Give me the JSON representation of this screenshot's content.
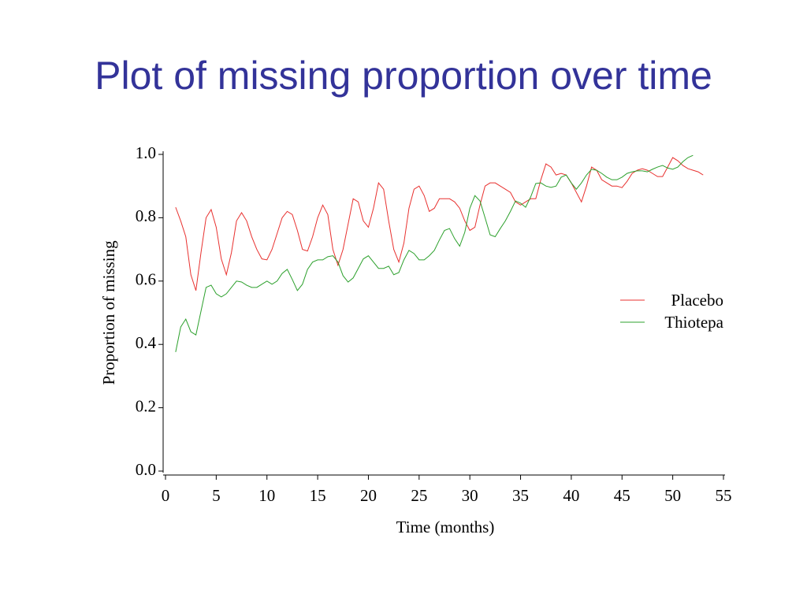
{
  "chart_data": {
    "type": "line",
    "title": "Plot of missing proportion over time",
    "xlabel": "Time (months)",
    "ylabel": "Proportion of missing",
    "legend": "right",
    "x": [
      1,
      1.5,
      2,
      2.5,
      3,
      3.5,
      4,
      4.5,
      5,
      5.5,
      6,
      6.5,
      7,
      7.5,
      8,
      8.5,
      9,
      9.5,
      10,
      10.5,
      11,
      11.5,
      12,
      12.5,
      13,
      13.5,
      14,
      14.5,
      15,
      15.5,
      16,
      16.5,
      17,
      17.5,
      18,
      18.5,
      19,
      19.5,
      20,
      20.5,
      21,
      21.5,
      22,
      22.5,
      23,
      23.5,
      24,
      24.5,
      25,
      25.5,
      26,
      26.5,
      27,
      27.5,
      28,
      28.5,
      29,
      29.5,
      30,
      30.5,
      31,
      31.5,
      32,
      32.5,
      33,
      33.5,
      34,
      34.5,
      35,
      35.5,
      36,
      36.5,
      37,
      37.5,
      38,
      38.5,
      39,
      39.5,
      40,
      40.5,
      41,
      41.5,
      42,
      42.5,
      43,
      43.5,
      44,
      44.5,
      45,
      45.5,
      46,
      46.5,
      47,
      47.5,
      48,
      48.5,
      49,
      49.5,
      50,
      50.5,
      51,
      51.5,
      52,
      52.5,
      53
    ],
    "series": [
      {
        "name": "Placebo",
        "color": "#e8312f",
        "values": [
          0.833,
          0.79,
          0.74,
          0.62,
          0.57,
          0.69,
          0.8,
          0.826,
          0.77,
          0.67,
          0.62,
          0.69,
          0.79,
          0.816,
          0.79,
          0.74,
          0.7,
          0.67,
          0.667,
          0.7,
          0.75,
          0.8,
          0.82,
          0.81,
          0.76,
          0.7,
          0.695,
          0.74,
          0.8,
          0.84,
          0.81,
          0.7,
          0.65,
          0.7,
          0.78,
          0.86,
          0.85,
          0.79,
          0.77,
          0.83,
          0.91,
          0.89,
          0.79,
          0.7,
          0.66,
          0.72,
          0.83,
          0.89,
          0.9,
          0.87,
          0.82,
          0.83,
          0.86,
          0.86,
          0.86,
          0.85,
          0.83,
          0.79,
          0.76,
          0.77,
          0.84,
          0.9,
          0.91,
          0.91,
          0.9,
          0.89,
          0.88,
          0.85,
          0.84,
          0.85,
          0.86,
          0.86,
          0.92,
          0.97,
          0.96,
          0.935,
          0.94,
          0.935,
          0.91,
          0.88,
          0.85,
          0.9,
          0.96,
          0.95,
          0.92,
          0.91,
          0.9,
          0.9,
          0.895,
          0.915,
          0.94,
          0.95,
          0.955,
          0.95,
          0.94,
          0.93,
          0.93,
          0.96,
          0.99,
          0.98,
          0.965,
          0.955,
          0.95,
          0.945,
          0.935
        ]
      },
      {
        "name": "Thiotepa",
        "color": "#2ca02c",
        "values": [
          0.376,
          0.455,
          0.48,
          0.44,
          0.43,
          0.505,
          0.58,
          0.587,
          0.56,
          0.55,
          0.56,
          0.58,
          0.6,
          0.597,
          0.587,
          0.58,
          0.58,
          0.59,
          0.6,
          0.59,
          0.6,
          0.624,
          0.637,
          0.605,
          0.57,
          0.59,
          0.637,
          0.66,
          0.667,
          0.667,
          0.677,
          0.68,
          0.66,
          0.617,
          0.597,
          0.61,
          0.64,
          0.67,
          0.68,
          0.66,
          0.64,
          0.64,
          0.647,
          0.62,
          0.627,
          0.667,
          0.697,
          0.687,
          0.667,
          0.667,
          0.68,
          0.697,
          0.73,
          0.76,
          0.766,
          0.734,
          0.71,
          0.754,
          0.83,
          0.87,
          0.853,
          0.8,
          0.746,
          0.74,
          0.766,
          0.79,
          0.82,
          0.853,
          0.846,
          0.833,
          0.866,
          0.908,
          0.91,
          0.9,
          0.896,
          0.9,
          0.928,
          0.935,
          0.91,
          0.89,
          0.91,
          0.935,
          0.953,
          0.95,
          0.94,
          0.928,
          0.92,
          0.92,
          0.928,
          0.94,
          0.945,
          0.948,
          0.948,
          0.945,
          0.953,
          0.96,
          0.965,
          0.957,
          0.953,
          0.96,
          0.977,
          0.99,
          0.997,
          null,
          null
        ]
      }
    ],
    "xlim": [
      0,
      55
    ],
    "xticks": [
      0,
      5,
      10,
      15,
      20,
      25,
      30,
      35,
      40,
      45,
      50,
      55
    ],
    "ylim": [
      0,
      1
    ],
    "yticks": [
      {
        "value": 0,
        "label": "0.0"
      },
      0.2,
      0.4,
      0.6,
      0.8,
      {
        "value": 1,
        "label": "1.0"
      }
    ]
  }
}
